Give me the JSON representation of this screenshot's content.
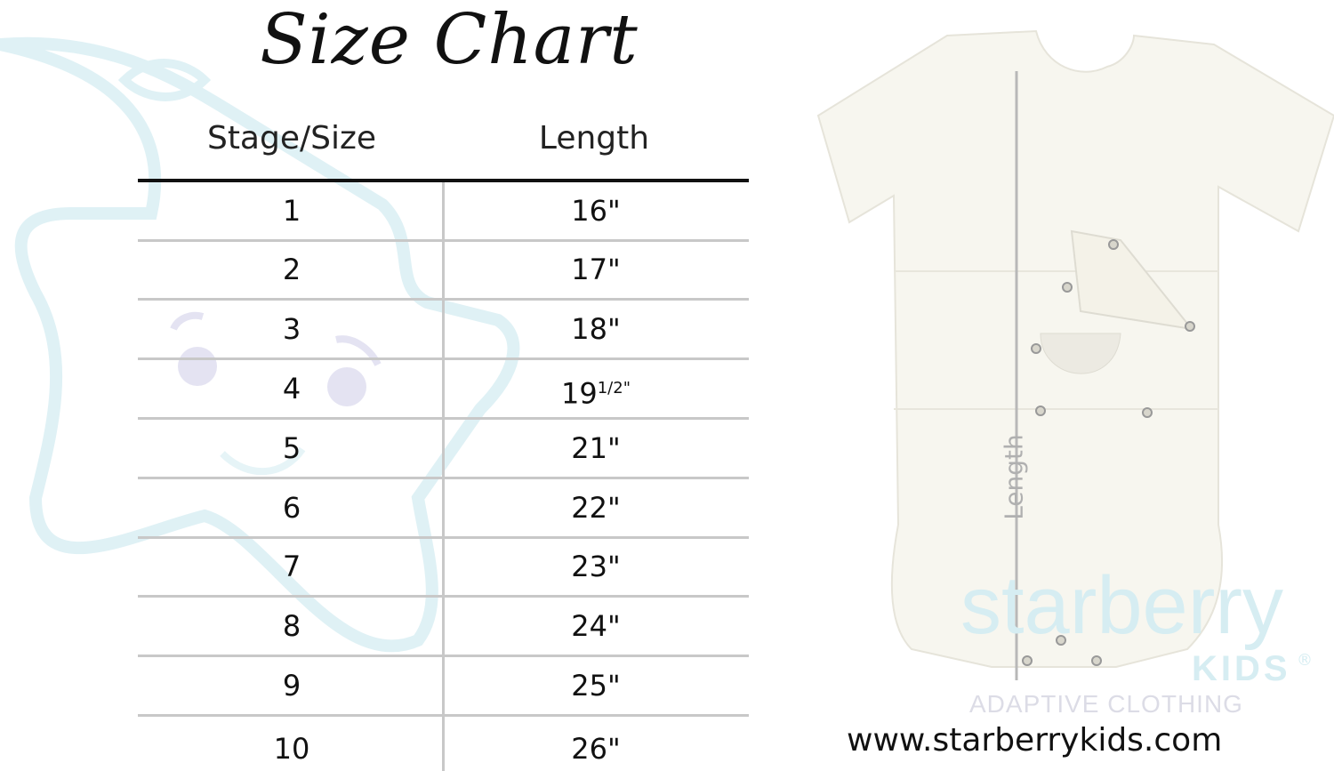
{
  "title": "Size Chart",
  "headers": {
    "size": "Stage/Size",
    "length": "Length"
  },
  "rows": [
    {
      "size": "1",
      "length": "16\""
    },
    {
      "size": "2",
      "length": "17\""
    },
    {
      "size": "3",
      "length": "18\""
    },
    {
      "size": "4",
      "length": "19",
      "length_sup": "1/2\""
    },
    {
      "size": "5",
      "length": "21\""
    },
    {
      "size": "6",
      "length": "22\""
    },
    {
      "size": "7",
      "length": "23\""
    },
    {
      "size": "8",
      "length": "24\""
    },
    {
      "size": "9",
      "length": "25\""
    },
    {
      "size": "10",
      "length": "26\""
    }
  ],
  "logo": {
    "name": "starberry",
    "kids": "KIDS",
    "reg": "®",
    "tagline": "ADAPTIVE CLOTHING"
  },
  "garment": {
    "measure_label": "Length"
  },
  "website": "www.starberrykids.com",
  "colors": {
    "watermark": "#dff1f5",
    "text": "#111111",
    "rule": "#c8c8c8",
    "garment": "#f7f6ef"
  }
}
